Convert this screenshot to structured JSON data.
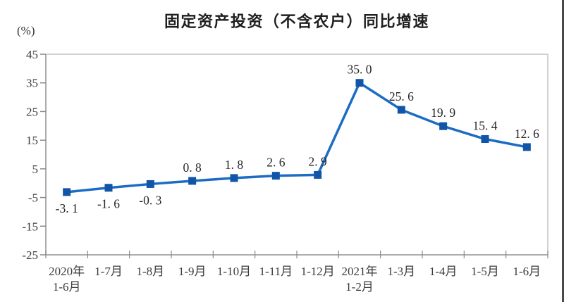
{
  "chart_data": {
    "type": "line",
    "title": "固定资产投资（不含农户）同比增速",
    "ylabel": "(%)",
    "xlabel": "",
    "categories": [
      "2020年\n1-6月",
      "1-7月",
      "1-8月",
      "1-9月",
      "1-10月",
      "1-11月",
      "1-12月",
      "2021年\n1-2月",
      "1-3月",
      "1-4月",
      "1-5月",
      "1-6月"
    ],
    "series": [
      {
        "name": "固定资产投资（不含农户）同比增速",
        "values": [
          -3.1,
          -1.6,
          -0.3,
          0.8,
          1.8,
          2.6,
          2.9,
          35.0,
          25.6,
          19.9,
          15.4,
          12.6
        ]
      }
    ],
    "point_labels": [
      "-3. 1",
      "-1. 6",
      "-0. 3",
      "0. 8",
      "1. 8",
      "2. 6",
      "2. 9",
      "35. 0",
      "25. 6",
      "19. 9",
      "15. 4",
      "12. 6"
    ],
    "label_placement": [
      "below",
      "below",
      "below",
      "above",
      "above",
      "above",
      "above",
      "above",
      "above",
      "above",
      "above",
      "above"
    ],
    "yticks": [
      45,
      35,
      25,
      15,
      5,
      -5,
      -15,
      -25
    ],
    "ylim": [
      -25,
      45
    ],
    "grid": false,
    "legend": "none",
    "marker": "square",
    "colors": {
      "line": "#1b6cc2",
      "marker": "#1155a8",
      "axis_border": "#c4c4c4",
      "axis_main": "#9b9b9b",
      "tick": "#8a8a8a",
      "label_text": "#252525",
      "axis_text": "#3c3c3c",
      "title_text": "#1f1f1f"
    }
  }
}
